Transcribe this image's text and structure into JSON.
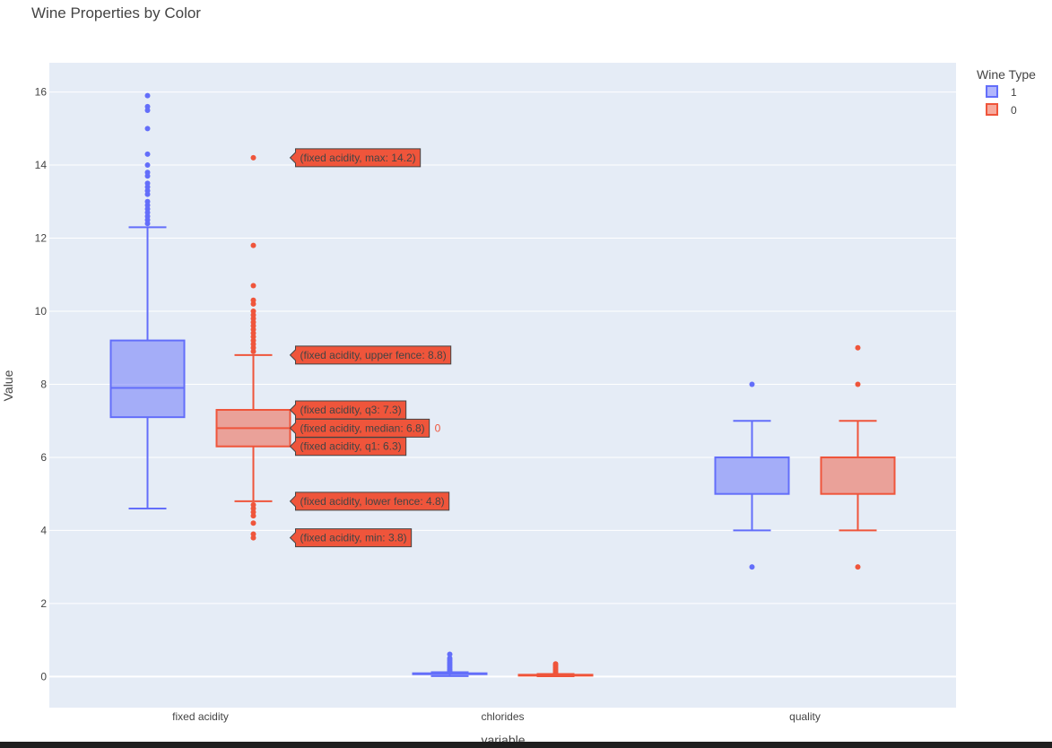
{
  "chart_data": {
    "type": "box",
    "title": "Wine Properties by Color",
    "xlabel": "variable",
    "ylabel": "Value",
    "ylim": [
      -0.85,
      16.8
    ],
    "yticks": [
      0,
      2,
      4,
      6,
      8,
      10,
      12,
      14,
      16
    ],
    "grid": true,
    "categories": [
      "fixed acidity",
      "chlorides",
      "quality"
    ],
    "legend": {
      "title": "Wine Type",
      "position": "top-right",
      "entries": [
        "1",
        "0"
      ]
    },
    "colors": {
      "series_1": "#636efa",
      "series_0": "#ef553b",
      "plot_background": "#e5ecf6"
    },
    "series": [
      {
        "name": "1",
        "boxes": [
          {
            "category": "fixed acidity",
            "min": 4.6,
            "q1": 7.1,
            "median": 7.9,
            "q3": 9.2,
            "upper_fence": 12.3,
            "outliers": [
              12.4,
              12.5,
              12.6,
              12.7,
              12.8,
              12.9,
              13.0,
              13.2,
              13.3,
              13.4,
              13.5,
              13.7,
              13.8,
              14.0,
              14.3,
              15.0,
              15.5,
              15.6,
              15.9
            ]
          },
          {
            "category": "chlorides",
            "min": 0.012,
            "q1": 0.07,
            "median": 0.079,
            "q3": 0.09,
            "upper_fence": 0.12,
            "outliers": [
              0.13,
              0.16,
              0.2,
              0.25,
              0.3,
              0.35,
              0.4,
              0.45,
              0.5,
              0.61
            ]
          },
          {
            "category": "quality",
            "min": 4,
            "q1": 5,
            "median": 6,
            "q3": 6,
            "upper_fence": 7,
            "outliers": [
              3,
              8
            ]
          }
        ]
      },
      {
        "name": "0",
        "boxes": [
          {
            "category": "fixed acidity",
            "min": 3.8,
            "q1": 6.3,
            "median": 6.8,
            "q3": 7.3,
            "upper_fence": 8.8,
            "lower_fence": 4.8,
            "outliers": [
              3.8,
              3.9,
              4.2,
              4.4,
              4.5,
              4.6,
              4.7,
              8.9,
              9.0,
              9.1,
              9.2,
              9.3,
              9.4,
              9.5,
              9.6,
              9.7,
              9.8,
              9.9,
              10.0,
              10.2,
              10.3,
              10.7,
              11.8,
              14.2
            ]
          },
          {
            "category": "chlorides",
            "min": 0.009,
            "q1": 0.036,
            "median": 0.043,
            "q3": 0.05,
            "upper_fence": 0.071,
            "outliers": [
              0.08,
              0.1,
              0.15,
              0.2,
              0.25,
              0.3,
              0.346
            ]
          },
          {
            "category": "quality",
            "min": 4,
            "q1": 5,
            "median": 6,
            "q3": 6,
            "upper_fence": 7,
            "outliers": [
              3,
              8,
              9
            ]
          }
        ]
      }
    ],
    "hover_labels": [
      {
        "text": "(fixed acidity, max: 14.2)",
        "value": 14.2
      },
      {
        "text": "(fixed acidity, upper fence: 8.8)",
        "value": 8.8
      },
      {
        "text": "(fixed acidity, q3: 7.3)",
        "value": 7.3
      },
      {
        "text": "(fixed acidity, median: 6.8)",
        "value": 6.8,
        "suffix": "0"
      },
      {
        "text": "(fixed acidity, q1: 6.3)",
        "value": 6.3
      },
      {
        "text": "(fixed acidity, lower fence: 4.8)",
        "value": 4.8
      },
      {
        "text": "(fixed acidity, min: 3.8)",
        "value": 3.8
      }
    ]
  }
}
